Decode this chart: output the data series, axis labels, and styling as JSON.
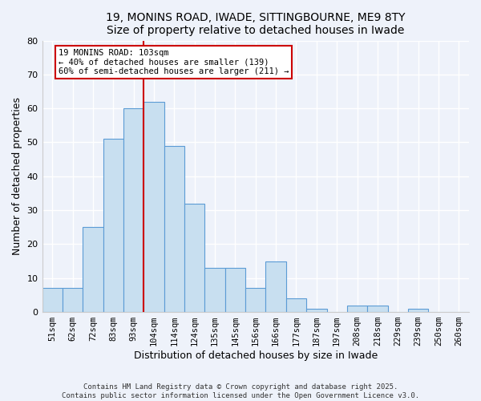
{
  "title": "19, MONINS ROAD, IWADE, SITTINGBOURNE, ME9 8TY",
  "subtitle": "Size of property relative to detached houses in Iwade",
  "xlabel": "Distribution of detached houses by size in Iwade",
  "ylabel": "Number of detached properties",
  "bar_labels": [
    "51sqm",
    "62sqm",
    "72sqm",
    "83sqm",
    "93sqm",
    "104sqm",
    "114sqm",
    "124sqm",
    "135sqm",
    "145sqm",
    "156sqm",
    "166sqm",
    "177sqm",
    "187sqm",
    "197sqm",
    "208sqm",
    "218sqm",
    "229sqm",
    "239sqm",
    "250sqm",
    "260sqm"
  ],
  "bar_values": [
    7,
    7,
    25,
    51,
    60,
    62,
    49,
    32,
    13,
    13,
    7,
    15,
    4,
    1,
    0,
    2,
    2,
    0,
    1,
    0,
    0
  ],
  "bar_color": "#c8dff0",
  "bar_edge_color": "#5b9bd5",
  "ylim": [
    0,
    80
  ],
  "yticks": [
    0,
    10,
    20,
    30,
    40,
    50,
    60,
    70,
    80
  ],
  "property_line_index": 5,
  "annotation_title": "19 MONINS ROAD: 103sqm",
  "annotation_line1": "← 40% of detached houses are smaller (139)",
  "annotation_line2": "60% of semi-detached houses are larger (211) →",
  "annotation_box_color": "#ffffff",
  "annotation_box_edge_color": "#cc0000",
  "property_line_color": "#cc0000",
  "footer1": "Contains HM Land Registry data © Crown copyright and database right 2025.",
  "footer2": "Contains public sector information licensed under the Open Government Licence v3.0.",
  "background_color": "#eef2fa",
  "grid_color": "#ffffff"
}
